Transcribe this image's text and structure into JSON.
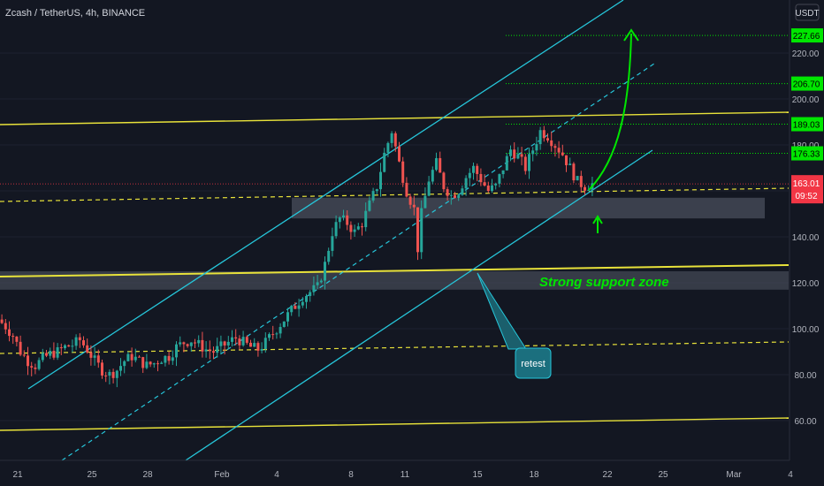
{
  "header": {
    "title": "Zcash / TetherUS, 4h, BINANCE"
  },
  "currency": "USDT",
  "colors": {
    "background": "#131722",
    "bull": "#26a69a",
    "bear": "#ef5350",
    "yellow": "#e8e23a",
    "channel": "#26c6da",
    "target": "#00e600",
    "label_green": "#00e600",
    "zone": "#4a4f5c",
    "price_label": "#f23645"
  },
  "chart_data": {
    "type": "candlestick",
    "symbol": "Zcash / TetherUS",
    "timeframe": "4h",
    "exchange": "BINANCE",
    "ylim": [
      40,
      230
    ],
    "y_ticks": [
      60,
      80,
      100,
      120,
      140,
      160,
      180,
      200,
      220
    ],
    "y_tick_labels": [
      "60.00",
      "80.00",
      "100.00",
      "120.00",
      "140.00",
      "160.00",
      "180.00",
      "200.00",
      "220.00"
    ],
    "x_tick_labels": [
      "21",
      "25",
      "28",
      "Feb",
      "4",
      "8",
      "11",
      "15",
      "18",
      "22",
      "25",
      "Mar",
      "4"
    ],
    "current_price": {
      "value": 163.01,
      "label": "163.01",
      "countdown": "09:52"
    },
    "target_levels": [
      {
        "value": 176.33,
        "label": "176.33"
      },
      {
        "value": 189.03,
        "label": "189.03"
      },
      {
        "value": 206.7,
        "label": "206.70"
      },
      {
        "value": 227.66,
        "label": "227.66"
      }
    ],
    "support_zones": [
      {
        "from": 117,
        "to": 125,
        "label": "Strong support zone"
      },
      {
        "from": 148,
        "to": 157,
        "label": ""
      }
    ],
    "annotations": {
      "retest": "retest",
      "support_text": "Strong support zone"
    },
    "price_path": [
      [
        0,
        104
      ],
      [
        2,
        101
      ],
      [
        4,
        97
      ],
      [
        6,
        90
      ],
      [
        8,
        86
      ],
      [
        10,
        84
      ],
      [
        12,
        87
      ],
      [
        14,
        89
      ],
      [
        16,
        90
      ],
      [
        18,
        92
      ],
      [
        20,
        93
      ],
      [
        22,
        95
      ],
      [
        24,
        91
      ],
      [
        26,
        86
      ],
      [
        28,
        82
      ],
      [
        30,
        80
      ],
      [
        32,
        82
      ],
      [
        34,
        86
      ],
      [
        36,
        88
      ],
      [
        38,
        86
      ],
      [
        40,
        84
      ],
      [
        42,
        85
      ],
      [
        44,
        87
      ],
      [
        46,
        88
      ],
      [
        48,
        92
      ],
      [
        50,
        94
      ],
      [
        52,
        95
      ],
      [
        54,
        93
      ],
      [
        56,
        91
      ],
      [
        58,
        90
      ],
      [
        60,
        92
      ],
      [
        62,
        94
      ],
      [
        64,
        96
      ],
      [
        66,
        94
      ],
      [
        68,
        92
      ],
      [
        70,
        91
      ],
      [
        72,
        94
      ],
      [
        74,
        98
      ],
      [
        76,
        102
      ],
      [
        78,
        106
      ],
      [
        80,
        110
      ],
      [
        82,
        114
      ],
      [
        84,
        116
      ],
      [
        86,
        118
      ],
      [
        88,
        128
      ],
      [
        90,
        142
      ],
      [
        92,
        148
      ],
      [
        94,
        146
      ],
      [
        96,
        142
      ],
      [
        98,
        146
      ],
      [
        100,
        154
      ],
      [
        102,
        162
      ],
      [
        104,
        176
      ],
      [
        106,
        186
      ],
      [
        108,
        172
      ],
      [
        110,
        160
      ],
      [
        112,
        152
      ],
      [
        113,
        135
      ],
      [
        114,
        150
      ],
      [
        116,
        165
      ],
      [
        118,
        172
      ],
      [
        120,
        162
      ],
      [
        122,
        158
      ],
      [
        124,
        160
      ],
      [
        126,
        166
      ],
      [
        128,
        170
      ],
      [
        130,
        165
      ],
      [
        132,
        160
      ],
      [
        134,
        162
      ],
      [
        136,
        170
      ],
      [
        138,
        178
      ],
      [
        140,
        175
      ],
      [
        142,
        170
      ],
      [
        144,
        178
      ],
      [
        146,
        186
      ],
      [
        148,
        184
      ],
      [
        150,
        180
      ],
      [
        152,
        176
      ],
      [
        154,
        170
      ],
      [
        156,
        164
      ],
      [
        158,
        162
      ],
      [
        160,
        163.01
      ]
    ]
  }
}
